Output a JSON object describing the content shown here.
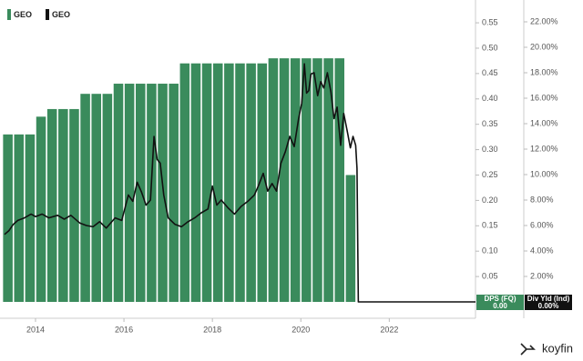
{
  "chart_data": {
    "type": "combo",
    "xlim": [
      2013.3,
      2023.95
    ],
    "xticks": [
      2014,
      2016,
      2018,
      2020,
      2022
    ],
    "ylim": [
      0,
      0.577
    ],
    "yticks": [
      0.05,
      {
        "value": 0.1,
        "label": "0.10"
      },
      0.15,
      {
        "value": 0.2,
        "label": "0.20"
      },
      0.25,
      {
        "value": 0.3,
        "label": "0.30"
      },
      0.35,
      {
        "value": 0.4,
        "label": "0.40"
      },
      0.45,
      {
        "value": 0.5,
        "label": "0.50"
      },
      0.55
    ],
    "y2lim": [
      0,
      23
    ],
    "y2ticks": [
      {
        "value": 2,
        "label": "2.00%"
      },
      {
        "value": 4,
        "label": "4.00%"
      },
      {
        "value": 6,
        "label": "6.00%"
      },
      {
        "value": 8,
        "label": "8.00%"
      },
      {
        "value": 10,
        "label": "10.00%"
      },
      {
        "value": 12,
        "label": "12.00%"
      },
      {
        "value": 14,
        "label": "14.00%"
      },
      {
        "value": 16,
        "label": "16.00%"
      },
      {
        "value": 18,
        "label": "18.00%"
      },
      {
        "value": 20,
        "label": "20.00%"
      },
      {
        "value": 22,
        "label": "22.00%"
      }
    ],
    "series": [
      {
        "name": "GEO",
        "type": "bar",
        "color": "#3a8b5c",
        "axis": "y",
        "x": [
          2013.25,
          2013.5,
          2013.75,
          2014,
          2014.25,
          2014.5,
          2014.75,
          2015,
          2015.25,
          2015.5,
          2015.75,
          2016,
          2016.25,
          2016.5,
          2016.75,
          2017,
          2017.25,
          2017.5,
          2017.75,
          2018,
          2018.25,
          2018.5,
          2018.75,
          2019,
          2019.25,
          2019.5,
          2019.75,
          2020,
          2020.25,
          2020.5,
          2020.75,
          2021
        ],
        "values": [
          0.33,
          0.33,
          0.33,
          0.365,
          0.38,
          0.38,
          0.38,
          0.41,
          0.41,
          0.41,
          0.43,
          0.43,
          0.43,
          0.43,
          0.43,
          0.43,
          0.47,
          0.47,
          0.47,
          0.47,
          0.47,
          0.47,
          0.47,
          0.47,
          0.48,
          0.48,
          0.48,
          0.48,
          0.48,
          0.48,
          0.48,
          0.25
        ]
      },
      {
        "name": "GEO",
        "type": "line",
        "color": "#111111",
        "axis": "y2",
        "x": [
          2013.3,
          2013.4,
          2013.5,
          2013.6,
          2013.75,
          2013.9,
          2014,
          2014.15,
          2014.3,
          2014.5,
          2014.65,
          2014.8,
          2015,
          2015.15,
          2015.3,
          2015.45,
          2015.6,
          2015.8,
          2015.95,
          2016.1,
          2016.2,
          2016.3,
          2016.4,
          2016.5,
          2016.6,
          2016.68,
          2016.75,
          2016.82,
          2016.9,
          2017,
          2017.15,
          2017.3,
          2017.45,
          2017.6,
          2017.75,
          2017.9,
          2018,
          2018.1,
          2018.2,
          2018.35,
          2018.5,
          2018.65,
          2018.8,
          2018.95,
          2019.05,
          2019.15,
          2019.25,
          2019.35,
          2019.45,
          2019.55,
          2019.65,
          2019.75,
          2019.85,
          2019.95,
          2020.02,
          2020.08,
          2020.13,
          2020.18,
          2020.23,
          2020.3,
          2020.38,
          2020.45,
          2020.52,
          2020.6,
          2020.68,
          2020.75,
          2020.82,
          2020.9,
          2020.97,
          2021.05,
          2021.12,
          2021.18,
          2021.24,
          2021.27,
          2021.3,
          2023.95
        ],
        "values": [
          5.3,
          5.6,
          6.1,
          6.4,
          6.6,
          6.9,
          6.7,
          6.9,
          6.6,
          6.8,
          6.5,
          6.8,
          6.2,
          6.0,
          5.9,
          6.3,
          5.8,
          6.6,
          6.4,
          8.4,
          7.9,
          9.4,
          8.6,
          7.6,
          8.0,
          13.0,
          11.2,
          10.9,
          8.4,
          6.6,
          6.1,
          5.9,
          6.3,
          6.6,
          7.0,
          7.3,
          9.1,
          7.6,
          8.0,
          7.4,
          6.9,
          7.5,
          7.9,
          8.4,
          9.2,
          10.1,
          8.7,
          9.3,
          8.7,
          10.9,
          11.8,
          13.0,
          12.2,
          14.4,
          15.6,
          18.7,
          16.4,
          16.6,
          17.9,
          18.0,
          16.2,
          17.3,
          16.8,
          18.0,
          16.5,
          14.4,
          15.3,
          12.3,
          14.8,
          13.4,
          12.1,
          13.0,
          12.3,
          10.5,
          0,
          0
        ]
      }
    ],
    "badges": [
      {
        "label": "DPS (FQ)",
        "value": 0,
        "value_label": "0.00",
        "axis": "y",
        "color": "#3a8b5c"
      },
      {
        "label": "Div Yld (Ind)",
        "value": 0,
        "value_label": "0.00%",
        "axis": "y2",
        "color": "#111111"
      }
    ],
    "brand": "koyfin"
  }
}
